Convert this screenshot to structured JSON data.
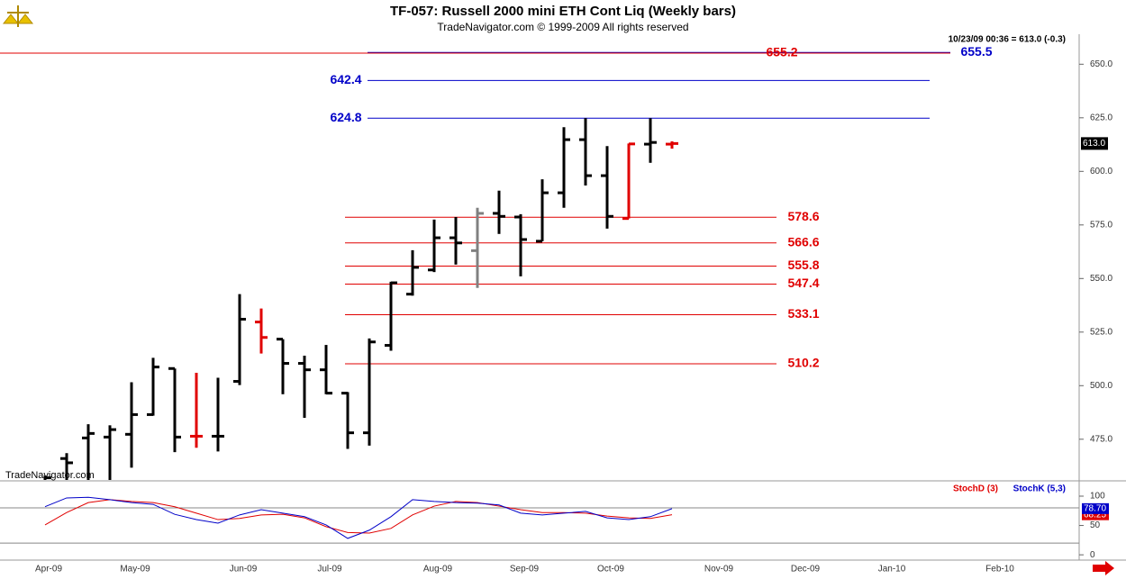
{
  "chart_data": [
    {
      "type": "ohlc",
      "title": "TF-057:  Russell 2000 mini ETH Cont Liq  (Weekly bars)",
      "subtitle": "TradeNavigator.com © 1999-2009 All rights reserved",
      "header": "10/23/09 00:36 = 613.0 (-0.3)",
      "watermark": "TradeNavigator.com",
      "categories": [
        "Apr-09",
        null,
        null,
        null,
        "May-09",
        null,
        null,
        null,
        null,
        "Jun-09",
        null,
        null,
        null,
        "Jul-09",
        null,
        null,
        null,
        null,
        "Aug-09",
        null,
        null,
        null,
        "Sep-09",
        null,
        null,
        null,
        "Oct-09",
        null,
        null,
        null,
        null,
        "Nov-09",
        null,
        null,
        null,
        "Dec-09",
        null,
        null,
        null,
        "Jan-10",
        null,
        null,
        null,
        null,
        "Feb-10",
        null
      ],
      "open": [
        455,
        466,
        475.6,
        476,
        477.3,
        486.5,
        508,
        476.4,
        476.4,
        502,
        529.7,
        521.7,
        510.4,
        507.4,
        496.5,
        478,
        518.8,
        542.7,
        554,
        569,
        563,
        580.4,
        578.7,
        567.4,
        590,
        614.8,
        598,
        578,
        612.7,
        612.7,
        null,
        null,
        null,
        null,
        null,
        null,
        null,
        null,
        null,
        null,
        null,
        null,
        null,
        null,
        null,
        null
      ],
      "high": [
        458,
        468.5,
        482,
        481.5,
        501.6,
        513,
        508,
        506,
        503.7,
        542.7,
        536,
        521.7,
        514,
        519,
        497,
        522,
        548.5,
        563.2,
        577.5,
        578.7,
        583,
        591,
        580,
        596.3,
        620.6,
        624.8,
        611.8,
        613,
        624.8,
        614,
        null,
        null,
        null,
        null,
        null,
        null,
        null,
        null,
        null,
        null,
        null,
        null,
        null,
        null,
        null,
        null
      ],
      "low": [
        450,
        456,
        456,
        456,
        461.7,
        486,
        469,
        471,
        469.3,
        500.3,
        515,
        496,
        485,
        496,
        470.5,
        472,
        516.3,
        542,
        553,
        556.5,
        545.6,
        570.8,
        551,
        567.4,
        583,
        593.4,
        573.3,
        578,
        604,
        610.6,
        null,
        null,
        null,
        null,
        null,
        null,
        null,
        null,
        null,
        null,
        null,
        null,
        null,
        null,
        null,
        null
      ],
      "close": [
        457,
        464,
        477.7,
        479.5,
        486.5,
        508.7,
        476,
        476.4,
        476.4,
        531,
        522.5,
        510.4,
        507.4,
        496.5,
        478,
        520.4,
        548,
        555.2,
        569,
        566.6,
        580.4,
        579,
        568.2,
        590,
        614.8,
        598,
        579,
        612.8,
        613.5,
        613,
        null,
        null,
        null,
        null,
        null,
        null,
        null,
        null,
        null,
        null,
        null,
        null,
        null,
        null,
        null,
        null
      ],
      "colors": [
        "#000",
        "#000",
        "#000",
        "#000",
        "#000",
        "#000",
        "#000",
        "#e00000",
        "#000",
        "#000",
        "#e00000",
        "#000",
        "#000",
        "#000",
        "#000",
        "#000",
        "#000",
        "#000",
        "#000",
        "#000",
        "#808080",
        "#000",
        "#000",
        "#000",
        "#000",
        "#000",
        "#000",
        "#e00000",
        "#000",
        "#e00000",
        null,
        null,
        null,
        null,
        null,
        null,
        null,
        null,
        null,
        null,
        null,
        null,
        null,
        null,
        null,
        null
      ],
      "levels": [
        {
          "value": 655.5,
          "color": "#0000c8"
        },
        {
          "value": 655.2,
          "color": "#e00000"
        },
        {
          "value": 642.4,
          "color": "#0000c8"
        },
        {
          "value": 624.8,
          "color": "#0000c8"
        },
        {
          "value": 578.6,
          "color": "#e00000"
        },
        {
          "value": 566.6,
          "color": "#e00000"
        },
        {
          "value": 555.8,
          "color": "#e00000"
        },
        {
          "value": 547.4,
          "color": "#e00000"
        },
        {
          "value": 533.1,
          "color": "#e00000"
        },
        {
          "value": 510.2,
          "color": "#e00000"
        }
      ],
      "last_price": {
        "value": 613,
        "label": "613.0"
      },
      "ylim": [
        456,
        664
      ],
      "yticks": [
        {
          "value": 475,
          "label": "475.0"
        },
        {
          "value": 500,
          "label": "500.0"
        },
        {
          "value": 525,
          "label": "525.0"
        },
        {
          "value": 550,
          "label": "550.0"
        },
        {
          "value": 575,
          "label": "575.0"
        },
        {
          "value": 600,
          "label": "600.0"
        },
        {
          "value": 625,
          "label": "625.0"
        },
        {
          "value": 650,
          "label": "650.0"
        }
      ]
    },
    {
      "type": "line",
      "series": [
        {
          "name": "StochD (3)",
          "color": "#e00000",
          "values": [
            51,
            72,
            89,
            94,
            91,
            89,
            82,
            71,
            60,
            62,
            68,
            69,
            63,
            48,
            38,
            37,
            45,
            68,
            83,
            91,
            89,
            83,
            77,
            72,
            72,
            71,
            66,
            63,
            62,
            68.25,
            null,
            null,
            null,
            null,
            null,
            null,
            null,
            null,
            null,
            null,
            null,
            null,
            null,
            null,
            null,
            null
          ],
          "end_label": "68.25"
        },
        {
          "name": "StochK (5,3)",
          "color": "#0000c8",
          "values": [
            82,
            97,
            98,
            94,
            89,
            86,
            69,
            60,
            54,
            68,
            77,
            71,
            65,
            51,
            28,
            42,
            65,
            94,
            91,
            89,
            88,
            85,
            71,
            68,
            71,
            74,
            63,
            60,
            65,
            78.7,
            null,
            null,
            null,
            null,
            null,
            null,
            null,
            null,
            null,
            null,
            null,
            null,
            null,
            null,
            null,
            null
          ],
          "end_label": "78.70"
        }
      ],
      "levels": [
        20,
        80
      ],
      "ylim": [
        -9,
        123
      ],
      "yticks": [
        0,
        50,
        100
      ]
    }
  ]
}
